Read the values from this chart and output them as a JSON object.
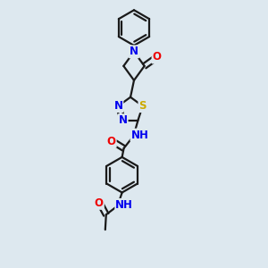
{
  "background_color": "#dde8ef",
  "bond_color": "#1a1a1a",
  "bond_width": 1.6,
  "atom_colors": {
    "N": "#0000ee",
    "O": "#ee0000",
    "S": "#ccaa00",
    "H": "#008080"
  },
  "font_size": 8.5
}
